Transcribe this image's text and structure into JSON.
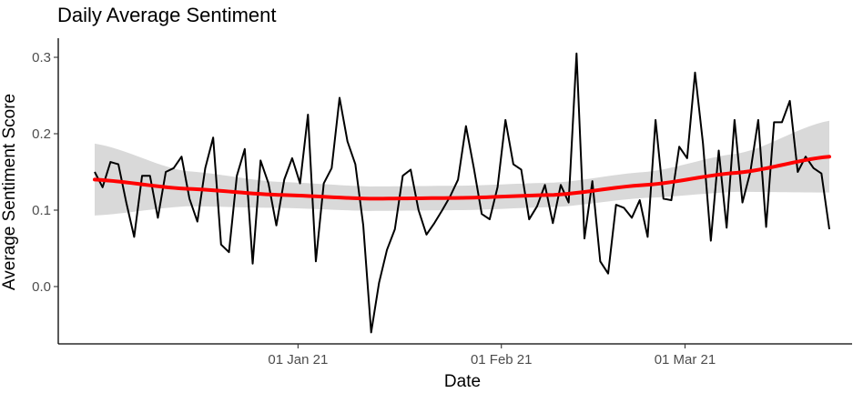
{
  "chart_data": {
    "type": "line",
    "title": "Daily Average Sentiment",
    "xlabel": "Date",
    "ylabel": "Average Sentiment Score",
    "x_start": "2020-12-01",
    "x_end": "2021-03-23",
    "x_tick_labels": [
      {
        "date": "2021-01-01",
        "label": "01 Jan 21"
      },
      {
        "date": "2021-02-01",
        "label": "01 Feb 21"
      },
      {
        "date": "2021-03-01",
        "label": "01 Mar 21"
      }
    ],
    "y_ticks": [
      0.0,
      0.1,
      0.2,
      0.3
    ],
    "y_tick_labels": [
      "0.0",
      "0.1",
      "0.2",
      "0.3"
    ],
    "ylim": [
      -0.075,
      0.325
    ],
    "grid": false,
    "colors": {
      "series": "#000000",
      "smooth": "#ff0000",
      "confidence_band": "#d9d9d9"
    },
    "series": [
      {
        "values": [
          0.15,
          0.13,
          0.163,
          0.16,
          0.11,
          0.065,
          0.145,
          0.145,
          0.09,
          0.15,
          0.155,
          0.17,
          0.115,
          0.085,
          0.155,
          0.195,
          0.055,
          0.045,
          0.145,
          0.18,
          0.03,
          0.165,
          0.135,
          0.08,
          0.14,
          0.168,
          0.135,
          0.225,
          0.033,
          0.135,
          0.155,
          0.247,
          0.19,
          0.16,
          0.08,
          -0.06,
          0.005,
          0.048,
          0.075,
          0.145,
          0.153,
          0.1,
          0.068,
          0.083,
          0.1,
          0.118,
          0.14,
          0.21,
          0.155,
          0.095,
          0.088,
          0.13,
          0.218,
          0.16,
          0.153,
          0.088,
          0.105,
          0.133,
          0.083,
          0.133,
          0.11,
          0.305,
          0.063,
          0.138,
          0.033,
          0.017,
          0.107,
          0.103,
          0.09,
          0.113,
          0.065,
          0.218,
          0.115,
          0.113,
          0.183,
          0.168,
          0.28,
          0.188,
          0.06,
          0.178,
          0.077,
          0.218,
          0.11,
          0.15,
          0.218,
          0.078,
          0.215,
          0.215,
          0.243,
          0.15,
          0.17,
          0.155,
          0.148,
          0.075
        ]
      }
    ],
    "smooth": {
      "x_fraction": [
        0,
        0.125,
        0.25,
        0.375,
        0.5,
        0.625,
        0.75,
        0.875,
        1
      ],
      "fit": [
        0.14,
        0.128,
        0.12,
        0.115,
        0.116,
        0.12,
        0.133,
        0.149,
        0.17
      ],
      "lower": [
        0.093,
        0.105,
        0.103,
        0.099,
        0.1,
        0.104,
        0.116,
        0.124,
        0.123
      ],
      "upper": [
        0.187,
        0.151,
        0.137,
        0.131,
        0.132,
        0.136,
        0.15,
        0.174,
        0.217
      ]
    }
  }
}
